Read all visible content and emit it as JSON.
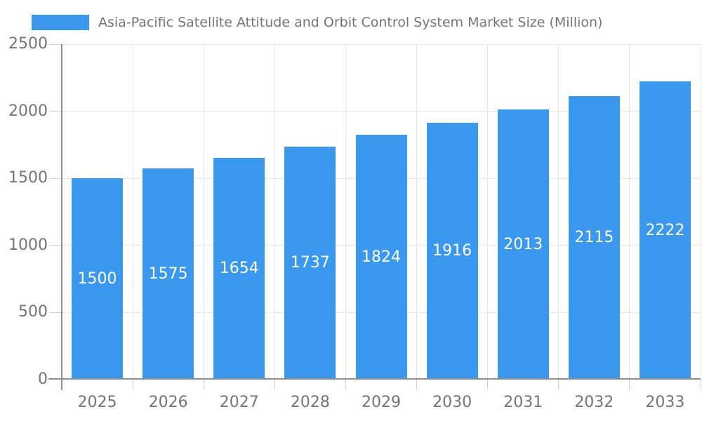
{
  "chart_data": {
    "type": "bar",
    "title": "Asia-Pacific Satellite Attitude and Orbit Control System Market Size (Million)",
    "categories": [
      "2025",
      "2026",
      "2027",
      "2028",
      "2029",
      "2030",
      "2031",
      "2032",
      "2033"
    ],
    "values": [
      1500,
      1575,
      1654,
      1737,
      1824,
      1916,
      2013,
      2115,
      2222
    ],
    "xlabel": "",
    "ylabel": "",
    "ylim": [
      0,
      2500
    ],
    "yticks": [
      0,
      500,
      1000,
      1500,
      2000,
      2500
    ],
    "grid": true,
    "legend_position": "top",
    "data_labels": "inside-center"
  },
  "colors": {
    "bar": "#3A99EE",
    "value_label": "#FFFFFF",
    "axis_text": "#757575",
    "title_text": "#757575",
    "gridline": "#E6E6E6",
    "tick": "#CFCFCF",
    "axis_line": "#8F8F8F",
    "background": "#FFFFFF"
  }
}
